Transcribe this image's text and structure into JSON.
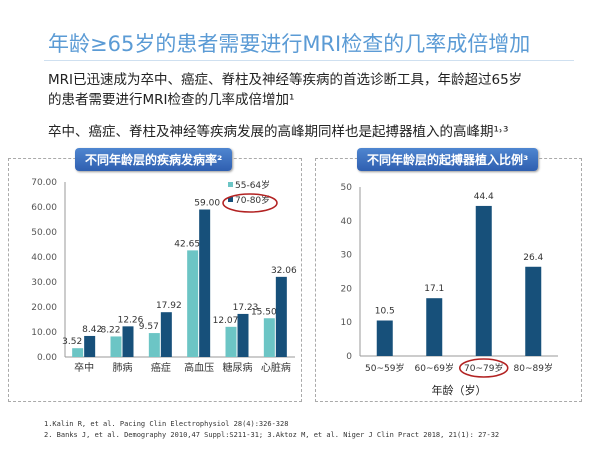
{
  "title": "年龄≥65岁的患者需要进行MRI检查的几率成倍增加",
  "para1_line1": "MRI已迅速成为卒中、癌症、脊柱及神经等疾病的首选诊断工具，年龄超过65岁",
  "para1_line2": "的患者需要进行MRI检查的几率成倍增加¹",
  "para2": "卒中、癌症、脊柱及神经等疾病发展的高峰期同样也是起搏器植入的高峰期¹˒³",
  "refs": [
    "1.Kalin R, et al. Pacing Clin Electrophysiol 28(4):326-328",
    "2. Banks J, et al. Demography 2010,47 Suppl:S211-31; 3.Aktoz M, et al. Niger J Clin Pract 2018, 21(1): 27-32"
  ],
  "colors": {
    "light": "#6cc5c5",
    "dark": "#17507a",
    "accent": "#5b9bd5",
    "highlight": "#b22222"
  },
  "chart_data": [
    {
      "type": "bar",
      "title": "不同年龄层的疾病发病率²",
      "categories": [
        "卒中",
        "肺病",
        "癌症",
        "高血压",
        "糖尿病",
        "心脏病"
      ],
      "series": [
        {
          "name": "55-64岁",
          "values": [
            3.52,
            8.22,
            9.57,
            42.65,
            12.07,
            15.5
          ]
        },
        {
          "name": "70-80岁",
          "values": [
            8.42,
            12.26,
            17.92,
            59.0,
            17.23,
            32.06
          ]
        }
      ],
      "value_labels": [
        [
          "3.52",
          "8.22",
          "9.57",
          "42.65",
          "12.07",
          "15.50"
        ],
        [
          "8.42",
          "12.26",
          "17.92",
          "59.00",
          "17.23",
          "32.06"
        ]
      ],
      "yticks": [
        "0.00",
        "10.00",
        "20.00",
        "30.00",
        "40.00",
        "50.00",
        "60.00",
        "70.00"
      ],
      "ylim": [
        0,
        70
      ],
      "legend": "top-right",
      "highlighted_legend": "70-80岁"
    },
    {
      "type": "bar",
      "title": "不同年龄层的起搏器植入比例³",
      "categories": [
        "50~59岁",
        "60~69岁",
        "70~79岁",
        "80~89岁"
      ],
      "values": [
        10.5,
        17.1,
        44.4,
        26.4
      ],
      "value_labels": [
        "10.5",
        "17.1",
        "44.4",
        "26.4"
      ],
      "yticks": [
        "0",
        "10",
        "20",
        "30",
        "40",
        "50"
      ],
      "ylim": [
        0,
        50
      ],
      "xlabel": "年龄（岁）",
      "highlighted_category": "70~79岁"
    }
  ]
}
